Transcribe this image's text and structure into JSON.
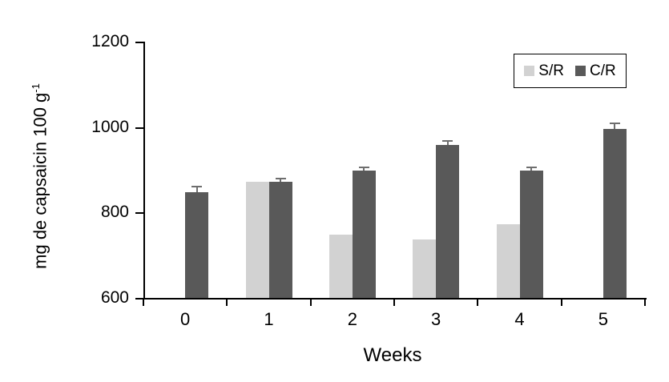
{
  "chart_data": {
    "type": "bar",
    "title": "",
    "xlabel": "Weeks",
    "ylabel": {
      "text": "mg de capsaicin 100 g",
      "superscript": "-1",
      "full": "mg de capsaicin 100 g⁻¹"
    },
    "categories": [
      "0",
      "1",
      "2",
      "3",
      "4",
      "5"
    ],
    "series": [
      {
        "name": "S/R",
        "color": "#d2d2d2",
        "values": [
          null,
          872,
          749,
          736,
          772,
          null
        ],
        "errors": [
          null,
          null,
          null,
          null,
          null,
          null
        ]
      },
      {
        "name": "C/R",
        "color": "#595959",
        "values": [
          848,
          871,
          899,
          958,
          898,
          996
        ],
        "errors": [
          10,
          7,
          5,
          8,
          6,
          11
        ]
      }
    ],
    "ylim": [
      600,
      1200
    ],
    "yticks": [
      600,
      800,
      1000,
      1200
    ],
    "grid": false,
    "legend_position": "top-right",
    "axis_color": "#000000",
    "error_bar_color": "#6e6e6e",
    "background": "#ffffff"
  }
}
